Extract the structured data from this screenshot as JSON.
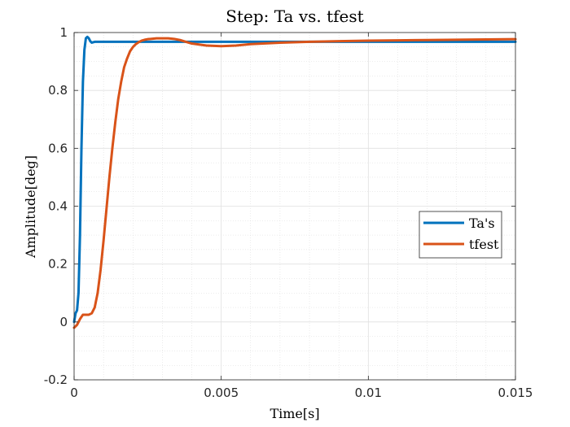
{
  "chart_data": {
    "type": "line",
    "title": "Step: Ta vs. tfest",
    "xlabel": "Time[s]",
    "ylabel": "Amplitude[deg]",
    "xlim": [
      0,
      0.015
    ],
    "ylim": [
      -0.2,
      1
    ],
    "x_ticks": [
      0,
      0.005,
      0.01,
      0.015
    ],
    "x_tick_labels": [
      "0",
      "0.005",
      "0.01",
      "0.015"
    ],
    "y_ticks": [
      -0.2,
      0,
      0.2,
      0.4,
      0.6,
      0.8,
      1
    ],
    "y_tick_labels": [
      "-0.2",
      "0",
      "0.2",
      "0.4",
      "0.6",
      "0.8",
      "1"
    ],
    "grid": true,
    "minor_grid": true,
    "legend_position": "right",
    "series": [
      {
        "name": "Ta's",
        "color": "#0072BD",
        "x": [
          0,
          5e-05,
          0.0001,
          0.00015,
          0.0002,
          0.00025,
          0.0003,
          0.00035,
          0.0004,
          0.00045,
          0.0005,
          0.00055,
          0.0006,
          0.0007,
          0.0008,
          0.0009,
          0.001,
          0.0012,
          0.0015,
          0.002,
          0.003,
          0.005,
          0.0075,
          0.01,
          0.0125,
          0.015
        ],
        "y": [
          0.0,
          0.03,
          0.04,
          0.1,
          0.3,
          0.6,
          0.83,
          0.94,
          0.98,
          0.985,
          0.98,
          0.97,
          0.965,
          0.968,
          0.968,
          0.968,
          0.968,
          0.968,
          0.968,
          0.968,
          0.968,
          0.968,
          0.968,
          0.968,
          0.968,
          0.968
        ]
      },
      {
        "name": "tfest",
        "color": "#D95319",
        "x": [
          0,
          0.0001,
          0.0002,
          0.0003,
          0.0004,
          0.0005,
          0.0006,
          0.0007,
          0.0008,
          0.0009,
          0.001,
          0.0011,
          0.0012,
          0.0013,
          0.0014,
          0.0015,
          0.0016,
          0.0017,
          0.0018,
          0.0019,
          0.002,
          0.0021,
          0.0022,
          0.0023,
          0.0024,
          0.0025,
          0.0026,
          0.0027,
          0.0028,
          0.0029,
          0.003,
          0.0032,
          0.0034,
          0.0036,
          0.0038,
          0.004,
          0.0045,
          0.005,
          0.0055,
          0.006,
          0.007,
          0.008,
          0.009,
          0.01,
          0.011,
          0.012,
          0.013,
          0.014,
          0.015
        ],
        "y": [
          -0.02,
          -0.01,
          0.01,
          0.025,
          0.025,
          0.025,
          0.03,
          0.05,
          0.1,
          0.18,
          0.28,
          0.39,
          0.5,
          0.6,
          0.69,
          0.77,
          0.83,
          0.88,
          0.91,
          0.935,
          0.95,
          0.96,
          0.967,
          0.972,
          0.975,
          0.977,
          0.978,
          0.979,
          0.98,
          0.98,
          0.98,
          0.98,
          0.978,
          0.974,
          0.968,
          0.962,
          0.955,
          0.953,
          0.955,
          0.96,
          0.965,
          0.968,
          0.97,
          0.972,
          0.973,
          0.974,
          0.975,
          0.976,
          0.977
        ]
      }
    ]
  }
}
